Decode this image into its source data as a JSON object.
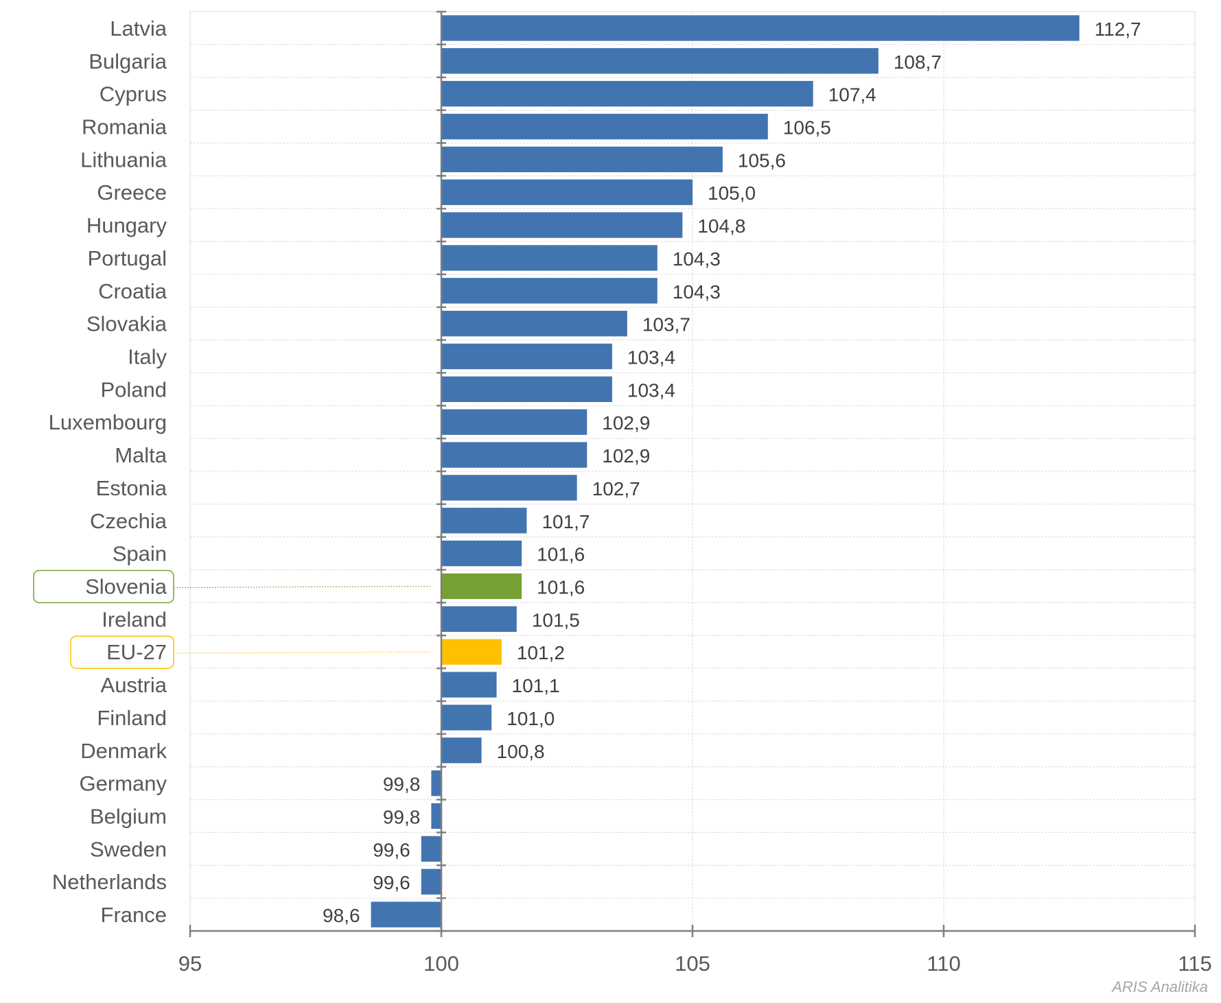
{
  "chart_data": {
    "type": "bar",
    "orientation": "horizontal",
    "baseline": 100,
    "xlim": [
      95,
      115
    ],
    "xticks": [
      95,
      100,
      105,
      110,
      115
    ],
    "xtick_labels": [
      "95",
      "100",
      "105",
      "110",
      "115"
    ],
    "categories": [
      "Latvia",
      "Bulgaria",
      "Cyprus",
      "Romania",
      "Lithuania",
      "Greece",
      "Hungary",
      "Portugal",
      "Croatia",
      "Slovakia",
      "Italy",
      "Poland",
      "Luxembourg",
      "Malta",
      "Estonia",
      "Czechia",
      "Spain",
      "Slovenia",
      "Ireland",
      "EU-27",
      "Austria",
      "Finland",
      "Denmark",
      "Germany",
      "Belgium",
      "Sweden",
      "Netherlands",
      "France"
    ],
    "values": [
      112.7,
      108.7,
      107.4,
      106.5,
      105.6,
      105.0,
      104.8,
      104.3,
      104.3,
      103.7,
      103.4,
      103.4,
      102.9,
      102.9,
      102.7,
      101.7,
      101.6,
      101.6,
      101.5,
      101.2,
      101.1,
      101.0,
      100.8,
      99.8,
      99.8,
      99.6,
      99.6,
      98.6
    ],
    "value_labels": [
      "112,7",
      "108,7",
      "107,4",
      "106,5",
      "105,6",
      "105,0",
      "104,8",
      "104,3",
      "104,3",
      "103,7",
      "103,4",
      "103,4",
      "102,9",
      "102,9",
      "102,7",
      "101,7",
      "101,6",
      "101,6",
      "101,5",
      "101,2",
      "101,1",
      "101,0",
      "100,8",
      "99,8",
      "99,8",
      "99,6",
      "99,6",
      "98,6"
    ],
    "highlights": [
      {
        "category": "Slovenia",
        "color": "#77a034"
      },
      {
        "category": "EU-27",
        "color": "#ffc000"
      }
    ],
    "bar_color": "#4274b0",
    "grid": true,
    "title": "",
    "xlabel": "",
    "ylabel": ""
  },
  "source_note": "ARIS Analitika"
}
